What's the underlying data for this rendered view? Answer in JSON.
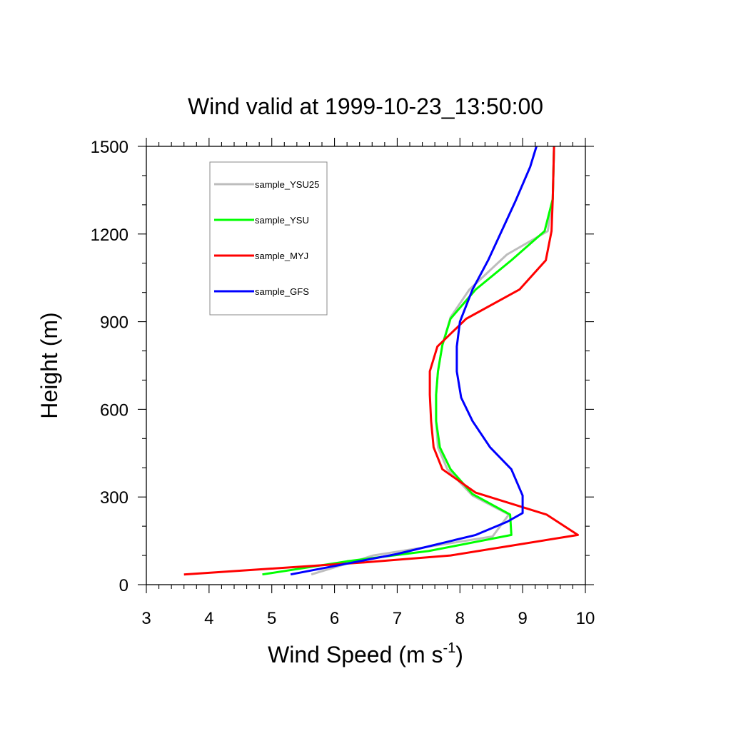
{
  "chart_data": {
    "type": "line",
    "title": "Wind valid at 1999-10-23_13:50:00",
    "xlabel": "Wind Speed (m s",
    "xlabel_sup": "-1",
    "xlabel_end": ")",
    "ylabel": "Height (m)",
    "xlim": [
      3,
      10
    ],
    "ylim": [
      0,
      1500
    ],
    "x_ticks": [
      "3",
      "4",
      "5",
      "6",
      "7",
      "8",
      "9",
      "10"
    ],
    "y_ticks": [
      "0",
      "300",
      "600",
      "900",
      "1200",
      "1500"
    ],
    "legend_position": "top-left",
    "series": [
      {
        "name": "sample_YSU25",
        "color": "#bdbdbd",
        "points": [
          [
            5.63,
            35
          ],
          [
            6.62,
            100
          ],
          [
            7.5,
            130
          ],
          [
            8.52,
            165
          ],
          [
            8.78,
            240
          ],
          [
            8.2,
            305
          ],
          [
            7.8,
            395
          ],
          [
            7.65,
            470
          ],
          [
            7.62,
            560
          ],
          [
            7.62,
            650
          ],
          [
            7.65,
            730
          ],
          [
            7.72,
            820
          ],
          [
            7.85,
            915
          ],
          [
            8.15,
            1010
          ],
          [
            8.75,
            1130
          ],
          [
            9.4,
            1210
          ],
          [
            9.48,
            1320
          ],
          [
            9.5,
            1500
          ]
        ]
      },
      {
        "name": "sample_YSU",
        "color": "#00ff00",
        "points": [
          [
            4.85,
            35
          ],
          [
            6.2,
            80
          ],
          [
            7.5,
            115
          ],
          [
            8.82,
            170
          ],
          [
            8.8,
            240
          ],
          [
            8.2,
            310
          ],
          [
            7.85,
            395
          ],
          [
            7.68,
            470
          ],
          [
            7.62,
            560
          ],
          [
            7.62,
            650
          ],
          [
            7.65,
            730
          ],
          [
            7.72,
            820
          ],
          [
            7.85,
            910
          ],
          [
            8.25,
            1010
          ],
          [
            8.82,
            1110
          ],
          [
            9.35,
            1210
          ],
          [
            9.48,
            1320
          ],
          [
            9.5,
            1500
          ]
        ]
      },
      {
        "name": "sample_MYJ",
        "color": "#ff0000",
        "points": [
          [
            3.6,
            35
          ],
          [
            6.4,
            75
          ],
          [
            7.85,
            100
          ],
          [
            9.88,
            170
          ],
          [
            9.38,
            240
          ],
          [
            8.25,
            315
          ],
          [
            7.72,
            395
          ],
          [
            7.58,
            470
          ],
          [
            7.54,
            560
          ],
          [
            7.52,
            650
          ],
          [
            7.52,
            730
          ],
          [
            7.64,
            815
          ],
          [
            8.1,
            910
          ],
          [
            8.95,
            1010
          ],
          [
            9.37,
            1110
          ],
          [
            9.46,
            1210
          ],
          [
            9.48,
            1320
          ],
          [
            9.5,
            1500
          ]
        ]
      },
      {
        "name": "sample_GFS",
        "color": "#0000ff",
        "points": [
          [
            5.3,
            35
          ],
          [
            7.0,
            105
          ],
          [
            8.25,
            170
          ],
          [
            8.75,
            215
          ],
          [
            9.0,
            245
          ],
          [
            9.0,
            305
          ],
          [
            8.82,
            395
          ],
          [
            8.48,
            470
          ],
          [
            8.2,
            560
          ],
          [
            8.02,
            640
          ],
          [
            7.95,
            730
          ],
          [
            7.95,
            815
          ],
          [
            8.0,
            900
          ],
          [
            8.2,
            1010
          ],
          [
            8.45,
            1110
          ],
          [
            8.88,
            1310
          ],
          [
            9.12,
            1430
          ],
          [
            9.22,
            1500
          ]
        ]
      }
    ]
  }
}
